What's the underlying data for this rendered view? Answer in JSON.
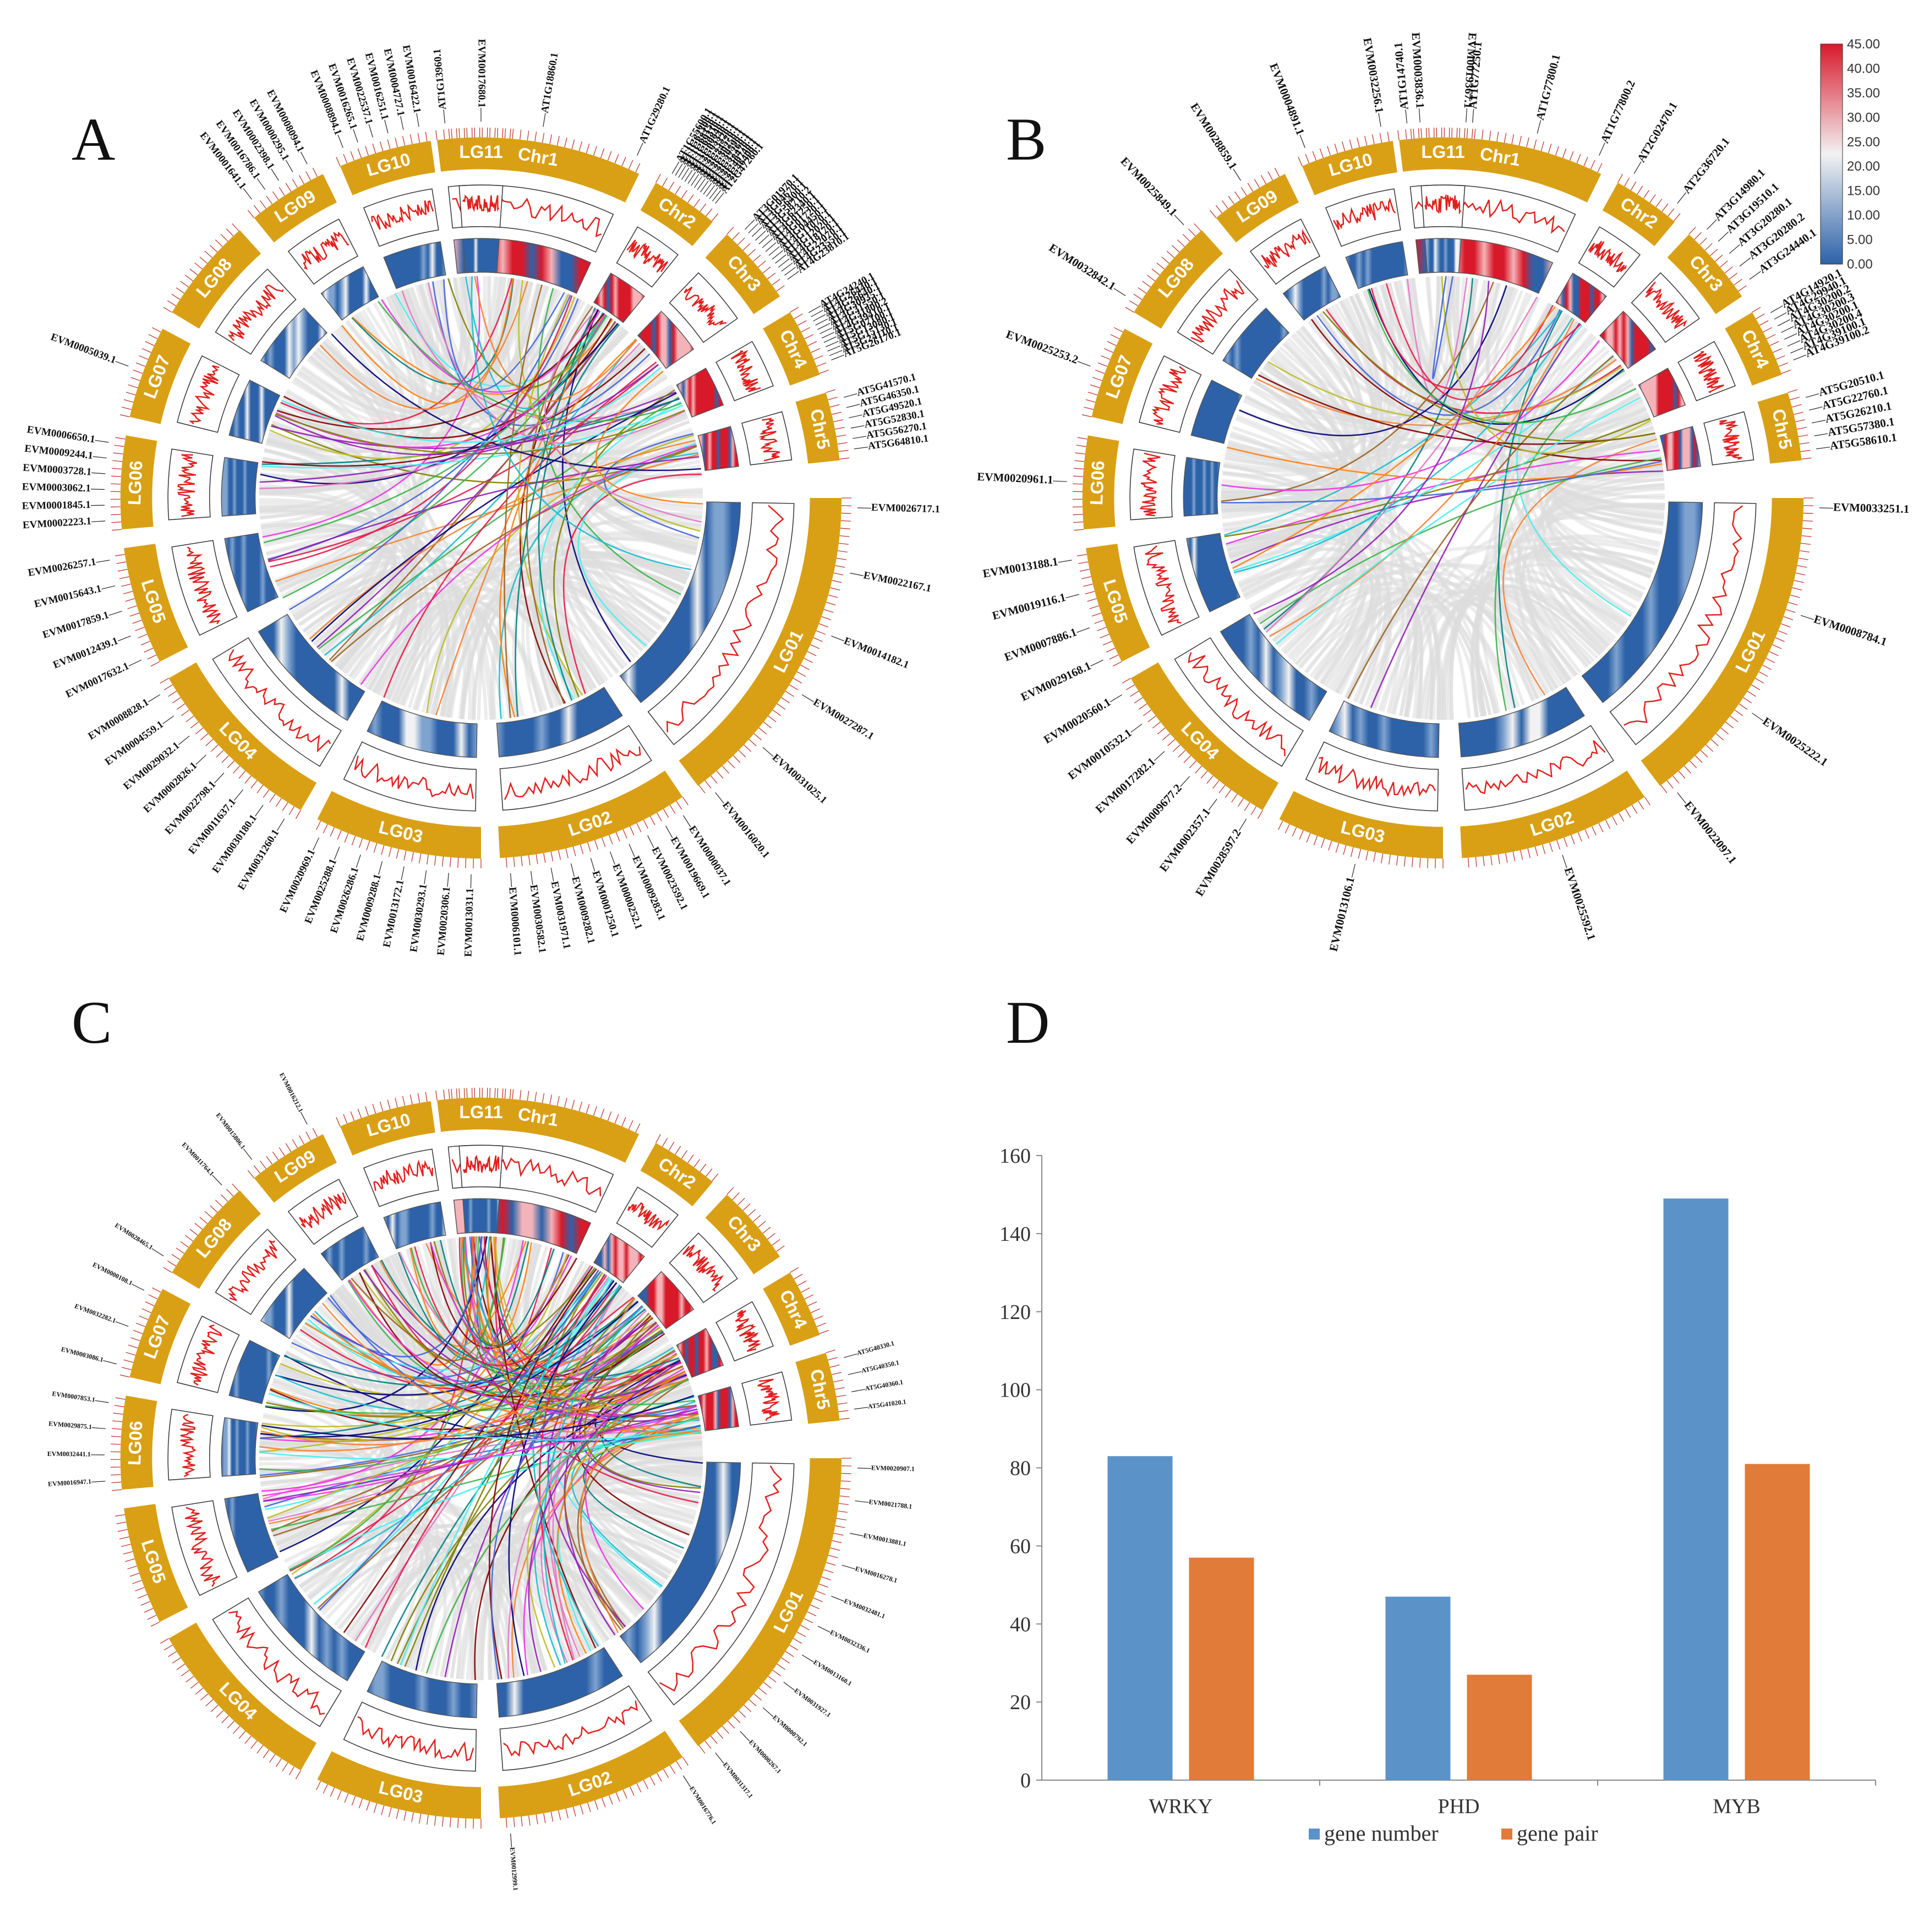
{
  "panels": {
    "a": {
      "letter": "A"
    },
    "b": {
      "letter": "B"
    },
    "c": {
      "letter": "C"
    },
    "d": {
      "letter": "D"
    }
  },
  "colors": {
    "segment": "#d9a015",
    "heat_low": "#2d62a8",
    "heat_mid": "#f2f2f2",
    "heat_high": "#d8192a",
    "density_line": "#e0201e",
    "background_links": "#dcdcdc",
    "gene_number": "#5b93c9",
    "gene_pair": "#e07b39"
  },
  "colorbar": {
    "ticks": [
      "45.00",
      "40.00",
      "35.00",
      "30.00",
      "25.00",
      "20.00",
      "15.00",
      "10.00",
      "5.00",
      "0.00"
    ]
  },
  "link_colors": [
    "#e6194b",
    "#3cb44b",
    "#4363d8",
    "#f58231",
    "#911eb4",
    "#46f0f0",
    "#f032e6",
    "#bcbd22",
    "#008080",
    "#9a6324",
    "#800000",
    "#808000",
    "#000075",
    "#e377c2",
    "#17becf",
    "#ff7f0e"
  ],
  "circos": {
    "segments": [
      {
        "name": "Chr1",
        "species": "arabidopsis"
      },
      {
        "name": "Chr2",
        "species": "arabidopsis"
      },
      {
        "name": "Chr3",
        "species": "arabidopsis"
      },
      {
        "name": "Chr4",
        "species": "arabidopsis"
      },
      {
        "name": "Chr5",
        "species": "arabidopsis"
      },
      {
        "name": "LG01",
        "species": "tree"
      },
      {
        "name": "LG02",
        "species": "tree"
      },
      {
        "name": "LG03",
        "species": "tree"
      },
      {
        "name": "LG04",
        "species": "tree"
      },
      {
        "name": "LG05",
        "species": "tree"
      },
      {
        "name": "LG06",
        "species": "tree"
      },
      {
        "name": "LG07",
        "species": "tree"
      },
      {
        "name": "LG08",
        "species": "tree"
      },
      {
        "name": "LG09",
        "species": "tree"
      },
      {
        "name": "LG10",
        "species": "tree"
      },
      {
        "name": "LG11",
        "species": "tree"
      }
    ]
  },
  "labels_a": [
    {
      "seg": "Chr1",
      "names": [
        "AT1G13960.1",
        "AT1G18860.1",
        "AT1G29280.1"
      ]
    },
    {
      "seg": "Chr2",
      "names": [
        "AT1G55600.1",
        "AT1G62300.1",
        "AT1G68150.1",
        "AT1G69310.1",
        "AT1G80840.1",
        "AT2G03340.1",
        "AT2G23320.1",
        "AT2G24570.1",
        "AT2G30250.1",
        "AT2G30590.1",
        "AT2G37260.1",
        "AT2G38470.1",
        "AT2G40740.1",
        "AT2G46400.1",
        "AT2G47260.1"
      ]
    },
    {
      "seg": "Chr3",
      "names": [
        "AT3G01970.1",
        "AT3G04670.1",
        "AT3G56400.1",
        "AT3G58710.2",
        "AT3G62340.1",
        "AT4G01250.1",
        "AT4G01720.1",
        "AT4G04450.1",
        "AT4G11070.1",
        "AT4G12020.1",
        "AT4G18170.1",
        "AT4G22070.1",
        "AT4G23550.1",
        "AT4G23810.1"
      ]
    },
    {
      "seg": "Chr4",
      "names": [
        "AT4G24240.1",
        "AT4G26440.1",
        "AT4G26640.1",
        "AT4G30935.1",
        "AT4G31550.1",
        "AT4G31800.2",
        "AT4G39410.1",
        "AT5G07100.1",
        "AT5G13080.1",
        "AT5G15130.1",
        "AT5G24110.1",
        "AT5G26170.1"
      ]
    },
    {
      "seg": "Chr5",
      "names": [
        "AT5G41570.1",
        "AT5G46350.1",
        "AT5G49520.1",
        "AT5G52830.1",
        "AT5G56270.1",
        "AT5G64810.1"
      ]
    },
    {
      "seg": "LG01",
      "names": [
        "EVM0026717.1",
        "EVM0022167.1",
        "EVM0014182.1",
        "EVM0027287.1",
        "EVM0031025.1",
        "EVM0016020.1"
      ]
    },
    {
      "seg": "LG02",
      "names": [
        "EVM0000037.1",
        "EVM0019669.1",
        "EVM0023592.1",
        "EVM0009283.1",
        "EVM0000252.1",
        "EVM0001250.1",
        "EVM0009282.1",
        "EVM0031971.1",
        "EVM0030582.1",
        "EVM0006101.1"
      ]
    },
    {
      "seg": "LG03",
      "names": [
        "EVM0013031.1",
        "EVM0020306.1",
        "EVM0030293.1",
        "EVM0013172.1",
        "EVM0009288.1",
        "EVM0026286.1",
        "EVM0025288.1",
        "EVM0020969.1"
      ]
    },
    {
      "seg": "LG04",
      "names": [
        "EVM0031260.1",
        "EVM0030180.1",
        "EVM0011637.1",
        "EVM0022798.1",
        "EVM0002826.1",
        "EVM0029032.1",
        "EVM0004559.1",
        "EVM0008828.1"
      ]
    },
    {
      "seg": "LG05",
      "names": [
        "EVM0017632.1",
        "EVM0012439.1",
        "EVM0017859.1",
        "EVM0015643.1",
        "EVM0026257.1"
      ]
    },
    {
      "seg": "LG06",
      "names": [
        "EVM0002223.1",
        "EVM0001845.1",
        "EVM0003062.1",
        "EVM0003728.1",
        "EVM0009244.1",
        "EVM0006650.1"
      ]
    },
    {
      "seg": "LG07",
      "names": [
        "EVM0005039.1"
      ]
    },
    {
      "seg": "LG09",
      "names": [
        "EVM0001641.1",
        "EVM0016786.1",
        "EVM0002398.1",
        "EVM0000295.1",
        "EVM0008094.1"
      ]
    },
    {
      "seg": "LG10",
      "names": [
        "EVM0008894.1",
        "EVM0016265.1",
        "EVM0022537.1",
        "EVM0016251.1",
        "EVM0004727.1",
        "EVM0016422.1"
      ]
    },
    {
      "seg": "LG11",
      "names": [
        "EVM0017680.1"
      ]
    }
  ],
  "labels_b": [
    {
      "seg": "Chr1",
      "names": [
        "AT1G14740.1",
        "AT1G77250.1",
        "AT1G77800.1",
        "AT1G77800.2"
      ]
    },
    {
      "seg": "Chr2",
      "names": [
        "AT2G02470.1",
        "AT2G36720.1"
      ]
    },
    {
      "seg": "Chr3",
      "names": [
        "AT3G14980.1",
        "AT3G19510.1",
        "AT3G20280.1",
        "AT3G20280.2",
        "AT3G24440.1"
      ]
    },
    {
      "seg": "Chr4",
      "names": [
        "AT4G14920.1",
        "AT4G29940.1",
        "AT4G30200.2",
        "AT4G30200.3",
        "AT4G30200.1",
        "AT4G30200.4",
        "AT4G39100.1",
        "AT4G39100.2"
      ]
    },
    {
      "seg": "Chr5",
      "names": [
        "AT5G20510.1",
        "AT5G22760.1",
        "AT5G26210.1",
        "AT5G57380.1",
        "AT5G58610.1"
      ]
    },
    {
      "seg": "LG01",
      "names": [
        "EVM0033251.1",
        "EVM0008784.1",
        "EVM0025222.1",
        "EVM0022097.1"
      ]
    },
    {
      "seg": "LG02",
      "names": [
        "EVM0025592.1"
      ]
    },
    {
      "seg": "LG03",
      "names": [
        "EVM0013106.1"
      ]
    },
    {
      "seg": "LG04",
      "names": [
        "EVM0028597.2",
        "EVM0002357.1",
        "EVM0009677.2",
        "EVM0017282.1",
        "EVM0010532.1",
        "EVM0020560.1"
      ]
    },
    {
      "seg": "LG05",
      "names": [
        "EVM0029168.1",
        "EVM0007886.1",
        "EVM0019116.1",
        "EVM0013188.1"
      ]
    },
    {
      "seg": "LG06",
      "names": [
        "EVM0020961.1"
      ]
    },
    {
      "seg": "LG07",
      "names": [
        "EVM0025253.2"
      ]
    },
    {
      "seg": "LG08",
      "names": [
        "EVM0032842.1",
        "EVM0025849.1"
      ]
    },
    {
      "seg": "LG09",
      "names": [
        "EVM0028859.1"
      ]
    },
    {
      "seg": "LG10",
      "names": [
        "EVM0004891.1",
        "EVM0032256.1"
      ]
    },
    {
      "seg": "LG11",
      "names": [
        "EVM0003836.1",
        "EVM0019367.1"
      ]
    }
  ],
  "labels_c": [
    {
      "seg": "Chr5",
      "names": [
        "AT5G40330.1",
        "AT5G40350.1",
        "AT5G40360.1",
        "AT5G41020.1"
      ]
    },
    {
      "seg": "LG01",
      "names": [
        "EVM0020907.1",
        "EVM0021788.1",
        "EVM0013881.1",
        "EVM0016278.1",
        "EVM0032481.1",
        "EVM0032336.1",
        "EVM0013160.1",
        "EVM0031927.1",
        "EVM0000792.1",
        "EVM0000267.1",
        "EVM0031317.1"
      ]
    },
    {
      "seg": "LG02",
      "names": [
        "EVM0016776.1",
        "EVM0012999.1"
      ]
    },
    {
      "seg": "LG06",
      "names": [
        "EVM0016947.1",
        "EVM0032441.1",
        "EVM0029875.1",
        "EVM0007853.1"
      ]
    },
    {
      "seg": "LG07",
      "names": [
        "EVM0003086.1",
        "EVM0032282.1",
        "EVM0000108.1"
      ]
    },
    {
      "seg": "LG08",
      "names": [
        "EVM0028465.1",
        "EVM0011764.1"
      ]
    },
    {
      "seg": "LG09",
      "names": [
        "EVM0015806.1",
        "EVM0016212.1"
      ]
    }
  ],
  "bar_chart": {
    "chart_data": {
      "type": "bar",
      "title": "",
      "xlabel": "",
      "ylabel": "",
      "categories": [
        "WRKY",
        "PHD",
        "MYB"
      ],
      "series": [
        {
          "name": "gene number",
          "values": [
            83,
            47,
            149
          ]
        },
        {
          "name": "gene pair",
          "values": [
            57,
            27,
            81
          ]
        }
      ],
      "ylim": [
        0,
        160
      ],
      "yticks": [
        0,
        20,
        40,
        60,
        80,
        100,
        120,
        140,
        160
      ],
      "grid": false,
      "legend": "bottom"
    }
  }
}
